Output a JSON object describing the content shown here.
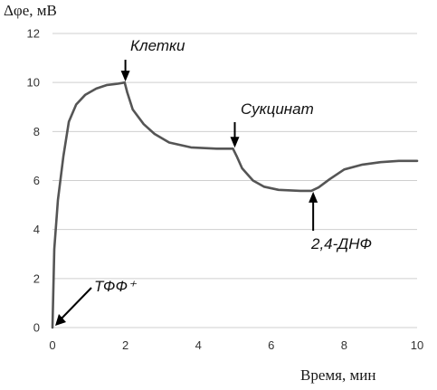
{
  "chart_data": {
    "type": "line",
    "ylabel": "Δφe, мВ",
    "xlabel": "Время, мин",
    "xlim": [
      0,
      10
    ],
    "ylim": [
      0,
      12
    ],
    "x_ticks": [
      0,
      2,
      4,
      6,
      8,
      10
    ],
    "y_ticks": [
      0,
      2,
      4,
      6,
      8,
      10,
      12
    ],
    "grid": "horizontal",
    "series": [
      {
        "color": "#555555",
        "points": [
          [
            0.0,
            0.0
          ],
          [
            0.05,
            3.2
          ],
          [
            0.15,
            5.2
          ],
          [
            0.3,
            7.0
          ],
          [
            0.45,
            8.4
          ],
          [
            0.65,
            9.1
          ],
          [
            0.9,
            9.5
          ],
          [
            1.2,
            9.75
          ],
          [
            1.5,
            9.9
          ],
          [
            1.8,
            9.95
          ],
          [
            1.98,
            10.0
          ],
          [
            2.05,
            9.6
          ],
          [
            2.2,
            8.9
          ],
          [
            2.5,
            8.3
          ],
          [
            2.8,
            7.9
          ],
          [
            3.2,
            7.55
          ],
          [
            3.8,
            7.35
          ],
          [
            4.5,
            7.3
          ],
          [
            4.95,
            7.3
          ],
          [
            5.05,
            7.0
          ],
          [
            5.2,
            6.5
          ],
          [
            5.5,
            6.0
          ],
          [
            5.8,
            5.75
          ],
          [
            6.2,
            5.62
          ],
          [
            6.8,
            5.58
          ],
          [
            7.1,
            5.58
          ],
          [
            7.3,
            5.72
          ],
          [
            7.6,
            6.05
          ],
          [
            8.0,
            6.45
          ],
          [
            8.5,
            6.65
          ],
          [
            9.0,
            6.75
          ],
          [
            9.5,
            6.8
          ],
          [
            10.0,
            6.8
          ]
        ]
      }
    ],
    "annotations": [
      {
        "label": "Клетки",
        "x": 2.0,
        "y": 10.0,
        "direction": "down"
      },
      {
        "label": "Сукцинат",
        "x": 5.0,
        "y": 7.3,
        "direction": "down"
      },
      {
        "label": "2,4-ДНФ",
        "x": 7.15,
        "y": 5.58,
        "direction": "up"
      },
      {
        "label": "ТФФ⁺",
        "x": 0.0,
        "y": 0.0,
        "direction": "diagonal"
      }
    ]
  }
}
